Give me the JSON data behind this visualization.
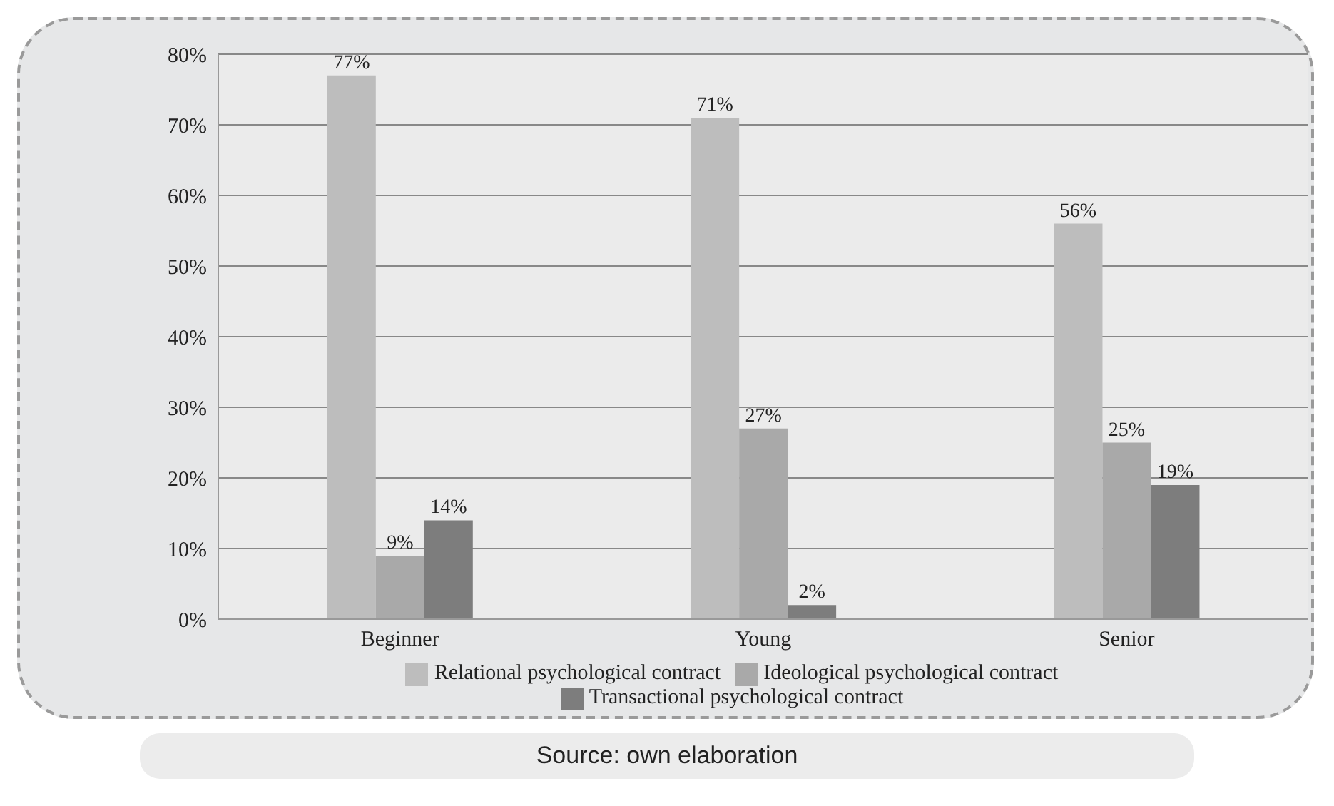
{
  "chart_data": {
    "type": "bar",
    "categories": [
      "Beginner",
      "Young",
      "Senior"
    ],
    "series": [
      {
        "name": "Relational psychological contract",
        "color": "#bdbdbd",
        "values": [
          77,
          71,
          56
        ],
        "value_labels": [
          "77%",
          "71%",
          "56%"
        ]
      },
      {
        "name": "Ideological psychological contract",
        "color": "#a9a9a9",
        "values": [
          9,
          27,
          25
        ],
        "value_labels": [
          "9%",
          "27%",
          "25%"
        ]
      },
      {
        "name": "Transactional psychological contract",
        "color": "#7d7d7d",
        "values": [
          14,
          2,
          19
        ],
        "value_labels": [
          "14%",
          "2%",
          "19%"
        ]
      }
    ],
    "ylim": [
      0,
      80
    ],
    "yticks": [
      {
        "value": 0,
        "label": "0%"
      },
      {
        "value": 10,
        "label": "10%"
      },
      {
        "value": 20,
        "label": "20%"
      },
      {
        "value": 30,
        "label": "30%"
      },
      {
        "value": 40,
        "label": "40%"
      },
      {
        "value": 50,
        "label": "50%"
      },
      {
        "value": 60,
        "label": "60%"
      },
      {
        "value": 70,
        "label": "70%"
      },
      {
        "value": 80,
        "label": "80%"
      }
    ],
    "grid": "y",
    "legend": "bottom",
    "annotations": [
      "Source: own elaboration"
    ]
  }
}
